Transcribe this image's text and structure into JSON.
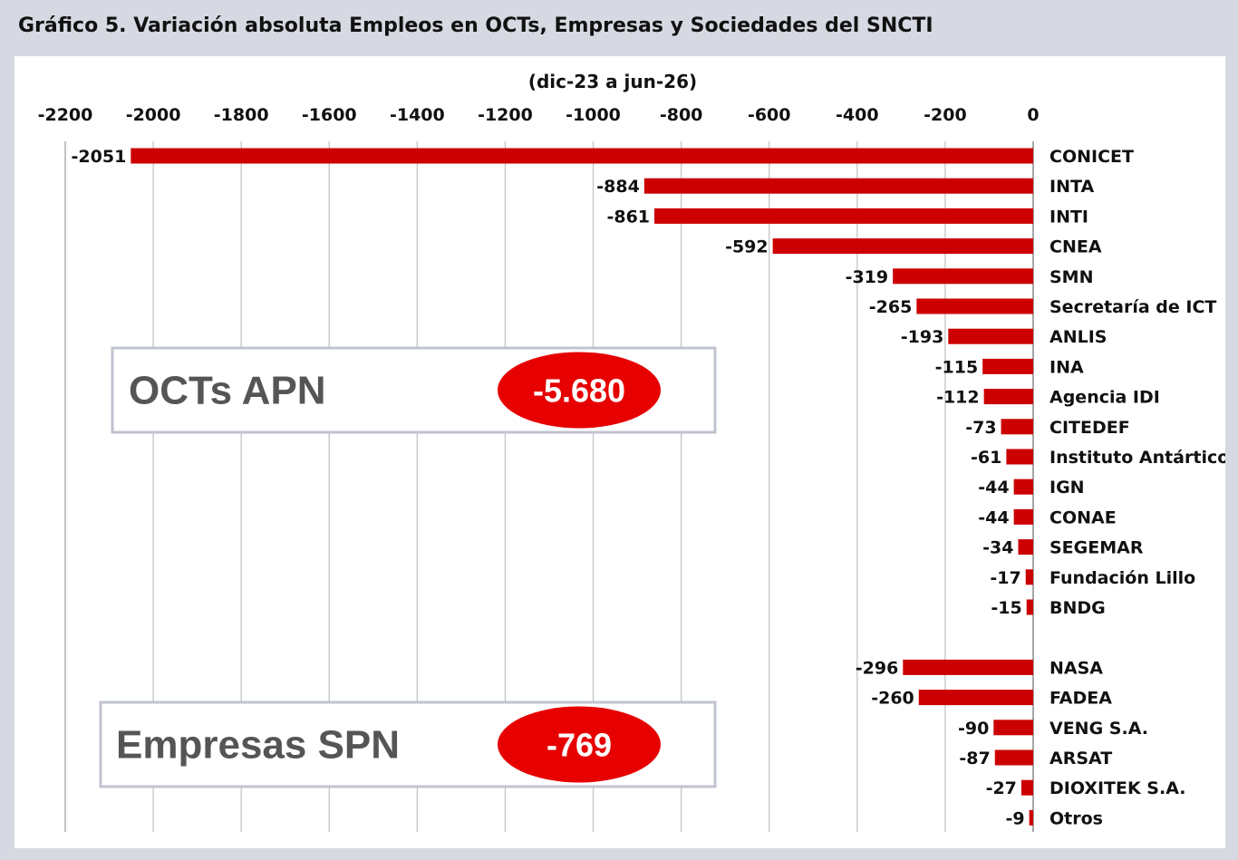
{
  "title": "Gráfico 5. Variación absoluta Empleos en OCTs, Empresas y Sociedades del SNCTI",
  "chart_data": {
    "type": "bar",
    "orientation": "horizontal",
    "subtitle": "(dic-23 a jun-26)",
    "xlim": [
      -2200,
      0
    ],
    "xticks": [
      "-2200",
      "-2000",
      "-1800",
      "-1600",
      "-1400",
      "-1200",
      "-1000",
      "-800",
      "-600",
      "-400",
      "-200",
      "0"
    ],
    "grid": true,
    "bar_color": "#cc0000",
    "groups": [
      {
        "box_label": "OCTs APN",
        "total": "-5.680",
        "categories": [
          "CONICET",
          "INTA",
          "INTI",
          "CNEA",
          "SMN",
          "Secretaría de ICT",
          "ANLIS",
          "INA",
          "Agencia IDI",
          "CITEDEF",
          "Instituto Antártico",
          "IGN",
          "CONAE",
          "SEGEMAR",
          "Fundación Lillo",
          "BNDG"
        ],
        "values": [
          -2051,
          -884,
          -861,
          -592,
          -319,
          -265,
          -193,
          -115,
          -112,
          -73,
          -61,
          -44,
          -44,
          -34,
          -17,
          -15
        ]
      },
      {
        "box_label": "Empresas SPN",
        "total": "-769",
        "categories": [
          "NASA",
          "FADEA",
          "VENG S.A.",
          "ARSAT",
          "DIOXITEK S.A.",
          "Otros"
        ],
        "values": [
          -296,
          -260,
          -90,
          -87,
          -27,
          -9
        ]
      }
    ]
  }
}
